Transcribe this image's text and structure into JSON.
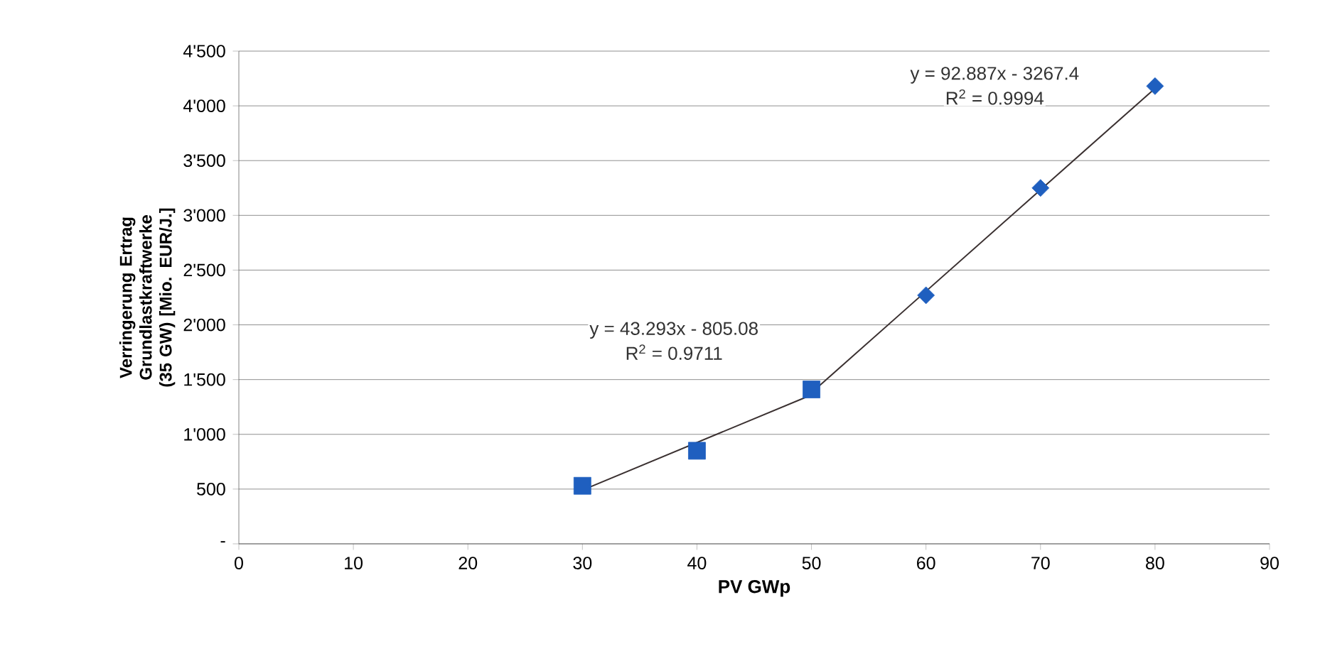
{
  "chart_data": {
    "type": "scatter",
    "xlabel": "PV GWp",
    "ylabel": "Verringerung Ertrag Grundlastkraftwerke (35  GW) [Mio. EUR/J.]",
    "series": [
      {
        "type": "scatter",
        "marker": "square",
        "color": "#1f5fbf",
        "x": [
          30,
          40,
          50
        ],
        "values": [
          530,
          850,
          1410
        ]
      },
      {
        "type": "scatter",
        "marker": "diamond",
        "color": "#1f5fbf",
        "x": [
          60,
          70,
          80
        ],
        "values": [
          2270,
          3250,
          4180
        ]
      },
      {
        "type": "line",
        "marker": "none",
        "color": "#3a3030",
        "x": [
          30,
          50
        ],
        "values": [
          490,
          1360
        ]
      },
      {
        "type": "line",
        "marker": "none",
        "color": "#3a3030",
        "x": [
          50,
          80
        ],
        "values": [
          1380,
          4160
        ]
      }
    ],
    "annotations": [
      "y = 43.293x - 805.08",
      "R$^{2}$ = 0.9711",
      "y = 92.887x - 3267.4",
      "R$^{2}$ = 0.9994"
    ],
    "xlim": [
      0,
      90
    ],
    "xticks": [
      0,
      10,
      20,
      30,
      40,
      50,
      60,
      70,
      80,
      90
    ],
    "ylim": [
      0,
      4500
    ],
    "yticks": [
      {
        "value": 0,
        "label": "-"
      },
      500,
      {
        "value": 1000,
        "label": "1'000"
      },
      {
        "value": 1500,
        "label": "1'500"
      },
      {
        "value": 2000,
        "label": "2'000"
      },
      {
        "value": 2500,
        "label": "2'500"
      },
      {
        "value": 3000,
        "label": "3'000"
      },
      {
        "value": 3500,
        "label": "3'500"
      },
      {
        "value": 4000,
        "label": "4'000"
      },
      {
        "value": 4500,
        "label": "4'500"
      }
    ],
    "grid": "y"
  }
}
